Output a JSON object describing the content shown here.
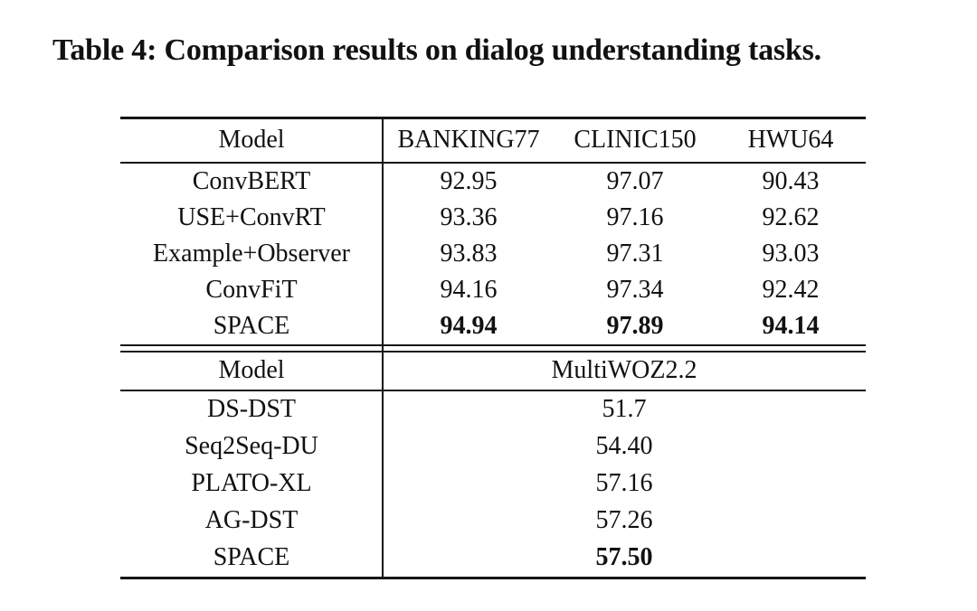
{
  "page": {
    "caption": "Table 4: Comparison results on dialog understanding tasks."
  },
  "colors": {
    "background": "#ffffff",
    "text": "#111111",
    "rule": "#161616"
  },
  "table1": {
    "headers": {
      "model": "Model",
      "col1": "BANKING77",
      "col2": "CLINIC150",
      "col3": "HWU64"
    },
    "rows": [
      {
        "model": "ConvBERT",
        "values": [
          "92.95",
          "97.07",
          "90.43"
        ],
        "bold": false
      },
      {
        "model": "USE+ConvRT",
        "values": [
          "93.36",
          "97.16",
          "92.62"
        ],
        "bold": false
      },
      {
        "model": "Example+Observer",
        "values": [
          "93.83",
          "97.31",
          "93.03"
        ],
        "bold": false
      },
      {
        "model": "ConvFiT",
        "values": [
          "94.16",
          "97.34",
          "92.42"
        ],
        "bold": false
      },
      {
        "model": "SPACE",
        "values": [
          "94.94",
          "97.89",
          "94.14"
        ],
        "bold": true
      }
    ]
  },
  "table2": {
    "headers": {
      "model": "Model",
      "col1": "MultiWOZ2.2"
    },
    "rows": [
      {
        "model": "DS-DST",
        "value": "51.7",
        "bold": false
      },
      {
        "model": "Seq2Seq-DU",
        "value": "54.40",
        "bold": false
      },
      {
        "model": "PLATO-XL",
        "value": "57.16",
        "bold": false
      },
      {
        "model": "AG-DST",
        "value": "57.26",
        "bold": false
      },
      {
        "model": "SPACE",
        "value": "57.50",
        "bold": true
      }
    ]
  }
}
